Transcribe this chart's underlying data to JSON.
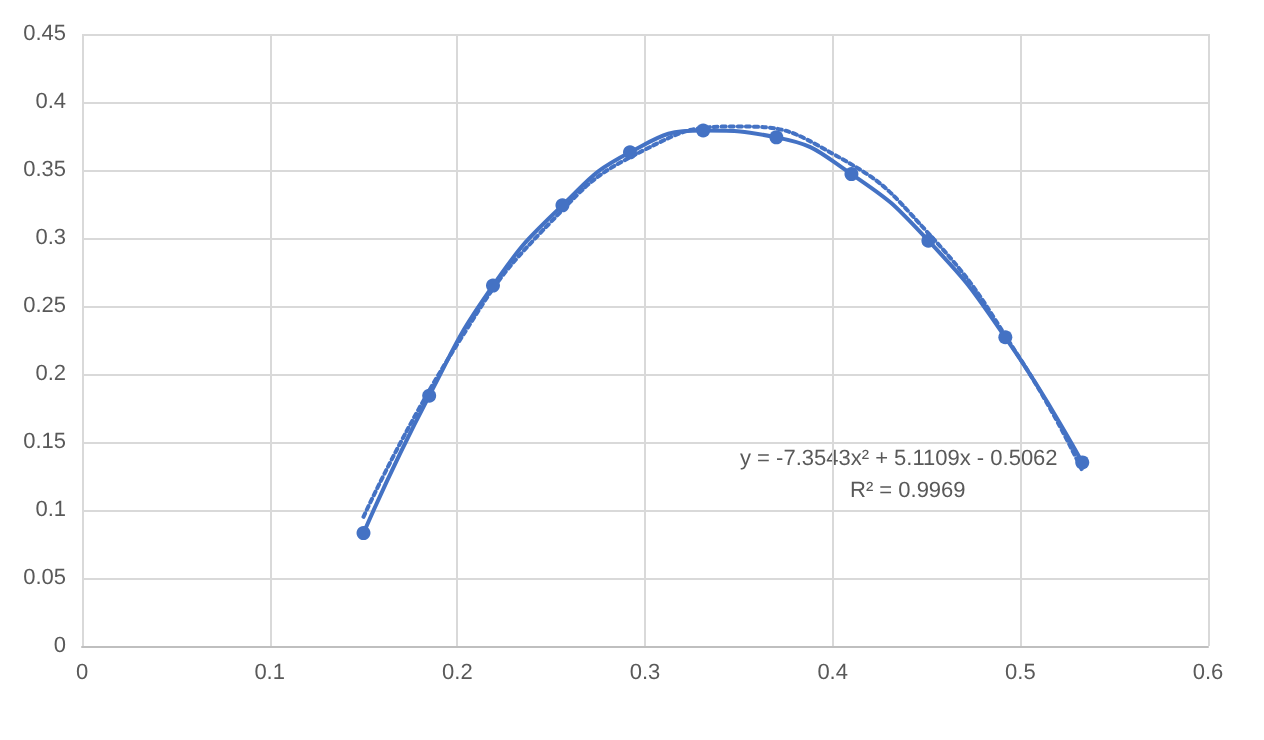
{
  "chart_data": {
    "type": "line",
    "series": [
      {
        "color": "#4472c4",
        "marker": "circle",
        "line_style": "solid",
        "x": [
          0.15,
          0.185,
          0.219,
          0.256,
          0.292,
          0.331,
          0.37,
          0.41,
          0.451,
          0.492,
          0.533
        ],
        "values": [
          0.083,
          0.184,
          0.265,
          0.324,
          0.363,
          0.379,
          0.374,
          0.347,
          0.298,
          0.227,
          0.135
        ]
      },
      {
        "color": "#4472c4",
        "marker": "none",
        "line_style": "dotted",
        "x": [
          0.15,
          0.2,
          0.25,
          0.3,
          0.35,
          0.4,
          0.45,
          0.5,
          0.533
        ],
        "values": [
          0.095,
          0.222,
          0.312,
          0.365,
          0.382,
          0.362,
          0.305,
          0.211,
          0.129
        ]
      }
    ],
    "xlim": [
      0,
      0.6
    ],
    "xticks": [
      0,
      0.1,
      0.2,
      0.3,
      0.4,
      0.5,
      0.6
    ],
    "ylim": [
      0,
      0.45
    ],
    "yticks": [
      0,
      0.05,
      0.1,
      0.15,
      0.2,
      0.25,
      0.3,
      0.35,
      0.4,
      0.45
    ],
    "grid": true,
    "annotations": [
      "y = -7.3543x² + 5.1109x - 0.5062",
      "R² = 0.9969"
    ]
  }
}
